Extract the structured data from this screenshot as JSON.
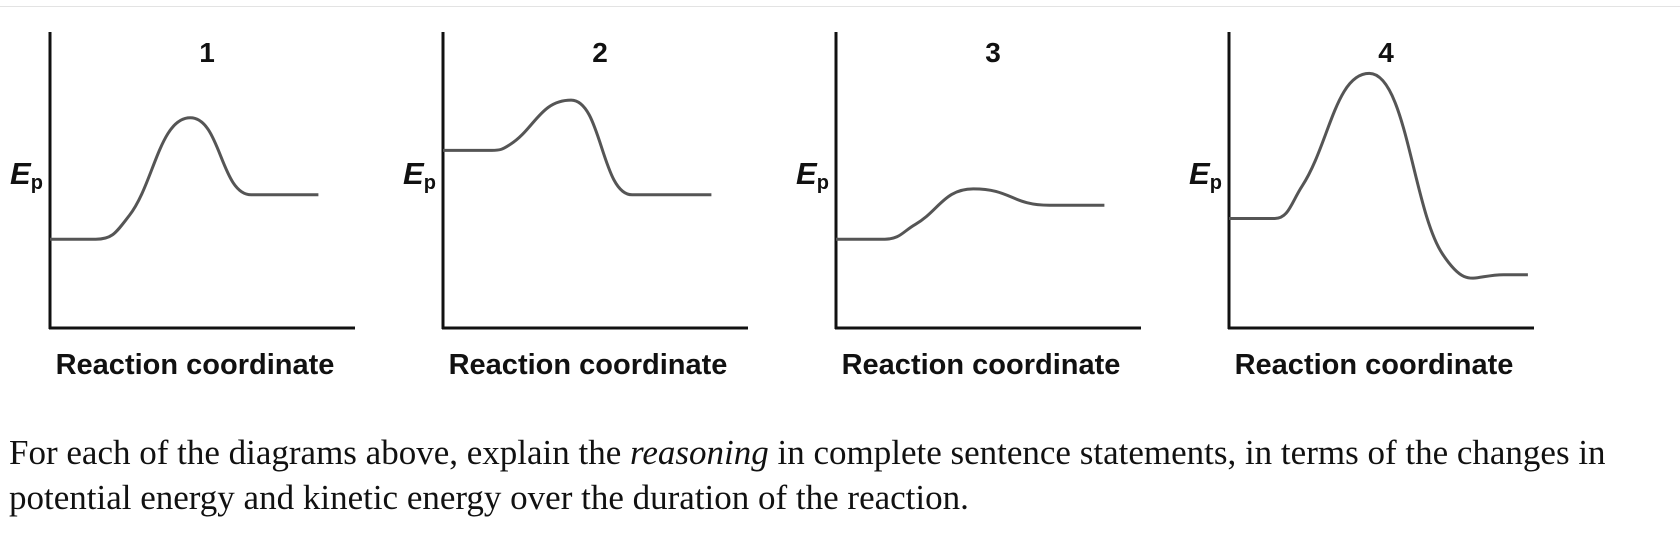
{
  "chart_data": [
    {
      "type": "line",
      "title": "1",
      "xlabel": "Reaction coordinate",
      "ylabel": "Ep",
      "ylabel_main": "E",
      "ylabel_sub": "p",
      "grid": false,
      "xlim": [
        0,
        1
      ],
      "ylim": [
        0,
        1
      ],
      "series": [
        {
          "x": [
            0,
            0.15,
            0.26,
            0.46,
            0.66,
            0.88
          ],
          "y": [
            0.3,
            0.3,
            0.38,
            0.71,
            0.45,
            0.45
          ]
        }
      ]
    },
    {
      "type": "line",
      "title": "2",
      "xlabel": "Reaction coordinate",
      "ylabel": "Ep",
      "ylabel_main": "E",
      "ylabel_sub": "p",
      "grid": false,
      "xlim": [
        0,
        1
      ],
      "ylim": [
        0,
        1
      ],
      "series": [
        {
          "x": [
            0,
            0.16,
            0.22,
            0.42,
            0.62,
            0.88
          ],
          "y": [
            0.6,
            0.6,
            0.62,
            0.77,
            0.45,
            0.45
          ]
        }
      ]
    },
    {
      "type": "line",
      "title": "3",
      "xlabel": "Reaction coordinate",
      "ylabel": "Ep",
      "ylabel_main": "E",
      "ylabel_sub": "p",
      "grid": false,
      "xlim": [
        0,
        1
      ],
      "ylim": [
        0,
        1
      ],
      "series": [
        {
          "x": [
            0,
            0.16,
            0.26,
            0.45,
            0.7,
            0.88
          ],
          "y": [
            0.3,
            0.3,
            0.35,
            0.47,
            0.415,
            0.415
          ]
        }
      ]
    },
    {
      "type": "line",
      "title": "4",
      "xlabel": "Reaction coordinate",
      "ylabel": "Ep",
      "ylabel_main": "E",
      "ylabel_sub": "p",
      "grid": false,
      "xlim": [
        0,
        1
      ],
      "ylim": [
        0,
        1
      ],
      "series": [
        {
          "x": [
            0,
            0.15,
            0.24,
            0.46,
            0.7,
            0.9,
            0.98
          ],
          "y": [
            0.37,
            0.37,
            0.48,
            0.86,
            0.25,
            0.18,
            0.18
          ]
        }
      ]
    }
  ],
  "question": {
    "part1": "For each of the diagrams above, explain the ",
    "emphasis": "reasoning",
    "part2": " in complete sentence statements, in terms of the changes in potential energy and kinetic energy over the duration of the reaction."
  }
}
